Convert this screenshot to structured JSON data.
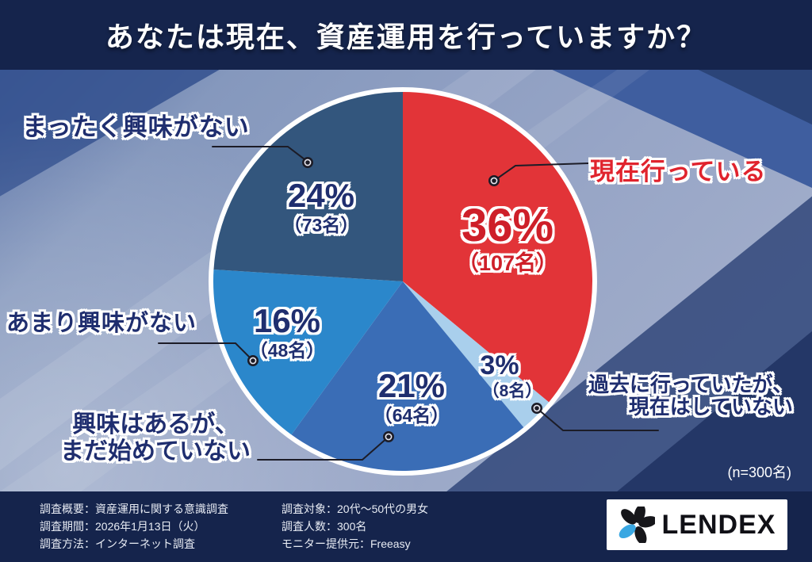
{
  "header": {
    "title": "あなたは現在、資産運用を行っていますか？"
  },
  "chart_data": {
    "type": "pie",
    "title": "あなたは現在、資産運用を行っていますか？",
    "sample_size_label": "(n=300名)",
    "sample_size": 300,
    "start_angle_deg": -90,
    "direction": "clockwise",
    "slices": [
      {
        "id": "currently-doing",
        "label": "現在行っている",
        "percent": 36,
        "percent_label": "36%",
        "count": 107,
        "count_label": "（107名）",
        "color": "#e23438"
      },
      {
        "id": "formerly-did",
        "label_line1": "過去に行っていたが、",
        "label_line2": "現在はしていない",
        "label": "過去に行っていたが、現在はしていない",
        "percent": 3,
        "percent_label": "3%",
        "count": 8,
        "count_label": "（8名）",
        "color": "#a9cfec"
      },
      {
        "id": "interested-not-started",
        "label_line1": "興味はあるが、",
        "label_line2": "まだ始めていない",
        "label": "興味はあるが、まだ始めていない",
        "percent": 21,
        "percent_label": "21%",
        "count": 64,
        "count_label": "（64名）",
        "color": "#3a6db6"
      },
      {
        "id": "not-very-interested",
        "label": "あまり興味がない",
        "percent": 16,
        "percent_label": "16%",
        "count": 48,
        "count_label": "（48名）",
        "color": "#2b87cb"
      },
      {
        "id": "no-interest",
        "label": "まったく興味がない",
        "percent": 24,
        "percent_label": "24%",
        "count": 73,
        "count_label": "（73名）",
        "color": "#33567d"
      }
    ],
    "colors": {
      "percent_text_navy": "#1f2e6f",
      "percent_text_red": "#ce1f29",
      "callout_red": "#e0232d",
      "leader_line": "#1c1c27",
      "header_footer_navy": "#15244c"
    }
  },
  "footer": {
    "left_lines": [
      "調査概要：資産運用に関する意識調査",
      "調査期間：2026年1月13日（火）",
      "調査方法：インターネット調査"
    ],
    "mid_lines": [
      "調査対象：20代～50代の男女",
      "調査人数：300名",
      "モニター提供元：Freeasy"
    ],
    "logo_text": "LENDEX",
    "logo_accent_color": "#39a7e2"
  }
}
